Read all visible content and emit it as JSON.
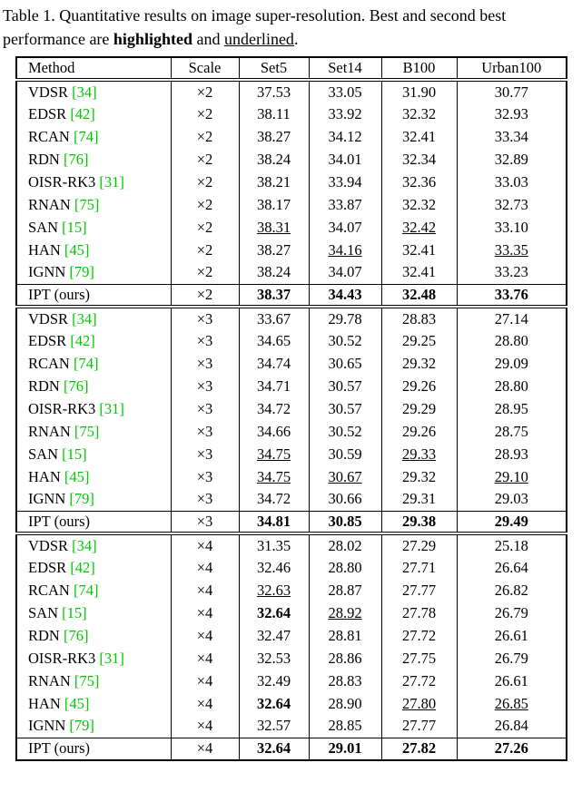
{
  "caption": {
    "prefix": "Table 1. Quantitative results on image super-resolution. Best and second best performance are ",
    "highlighted_word": "highlighted",
    "and_text": " and ",
    "underlined_word": "underlined",
    "period": "."
  },
  "table": {
    "citation_color": "#00C800",
    "columns": [
      "Method",
      "Scale",
      "Set5",
      "Set14",
      "B100",
      "Urban100"
    ],
    "sections": [
      {
        "scale": "×2",
        "rows": [
          {
            "method": "VDSR",
            "cite": "[34]",
            "cells": [
              "37.53",
              "33.05",
              "31.90",
              "30.77"
            ],
            "styles": [
              "p",
              "p",
              "p",
              "p"
            ]
          },
          {
            "method": "EDSR",
            "cite": "[42]",
            "cells": [
              "38.11",
              "33.92",
              "32.32",
              "32.93"
            ],
            "styles": [
              "p",
              "p",
              "p",
              "p"
            ]
          },
          {
            "method": "RCAN",
            "cite": "[74]",
            "cells": [
              "38.27",
              "34.12",
              "32.41",
              "33.34"
            ],
            "styles": [
              "p",
              "p",
              "p",
              "p"
            ]
          },
          {
            "method": "RDN",
            "cite": "[76]",
            "cells": [
              "38.24",
              "34.01",
              "32.34",
              "32.89"
            ],
            "styles": [
              "p",
              "p",
              "p",
              "p"
            ]
          },
          {
            "method": "OISR-RK3",
            "cite": "[31]",
            "cells": [
              "38.21",
              "33.94",
              "32.36",
              "33.03"
            ],
            "styles": [
              "p",
              "p",
              "p",
              "p"
            ]
          },
          {
            "method": "RNAN",
            "cite": "[75]",
            "cells": [
              "38.17",
              "33.87",
              "32.32",
              "32.73"
            ],
            "styles": [
              "p",
              "p",
              "p",
              "p"
            ]
          },
          {
            "method": "SAN",
            "cite": "[15]",
            "cells": [
              "38.31",
              "34.07",
              "32.42",
              "33.10"
            ],
            "styles": [
              "u",
              "p",
              "u",
              "p"
            ]
          },
          {
            "method": "HAN",
            "cite": "[45]",
            "cells": [
              "38.27",
              "34.16",
              "32.41",
              "33.35"
            ],
            "styles": [
              "p",
              "u",
              "p",
              "u"
            ]
          },
          {
            "method": "IGNN",
            "cite": "[79]",
            "cells": [
              "38.24",
              "34.07",
              "32.41",
              "33.23"
            ],
            "styles": [
              "p",
              "p",
              "p",
              "p"
            ]
          },
          {
            "method": "IPT (ours)",
            "cite": "",
            "cells": [
              "38.37",
              "34.43",
              "32.48",
              "33.76"
            ],
            "styles": [
              "b",
              "b",
              "b",
              "b"
            ],
            "ours": true
          }
        ]
      },
      {
        "scale": "×3",
        "rows": [
          {
            "method": "VDSR",
            "cite": "[34]",
            "cells": [
              "33.67",
              "29.78",
              "28.83",
              "27.14"
            ],
            "styles": [
              "p",
              "p",
              "p",
              "p"
            ]
          },
          {
            "method": "EDSR",
            "cite": "[42]",
            "cells": [
              "34.65",
              "30.52",
              "29.25",
              "28.80"
            ],
            "styles": [
              "p",
              "p",
              "p",
              "p"
            ]
          },
          {
            "method": "RCAN",
            "cite": "[74]",
            "cells": [
              "34.74",
              "30.65",
              "29.32",
              "29.09"
            ],
            "styles": [
              "p",
              "p",
              "p",
              "p"
            ]
          },
          {
            "method": "RDN",
            "cite": "[76]",
            "cells": [
              "34.71",
              "30.57",
              "29.26",
              "28.80"
            ],
            "styles": [
              "p",
              "p",
              "p",
              "p"
            ]
          },
          {
            "method": "OISR-RK3",
            "cite": "[31]",
            "cells": [
              "34.72",
              "30.57",
              "29.29",
              "28.95"
            ],
            "styles": [
              "p",
              "p",
              "p",
              "p"
            ]
          },
          {
            "method": "RNAN",
            "cite": "[75]",
            "cells": [
              "34.66",
              "30.52",
              "29.26",
              "28.75"
            ],
            "styles": [
              "p",
              "p",
              "p",
              "p"
            ]
          },
          {
            "method": "SAN",
            "cite": "[15]",
            "cells": [
              "34.75",
              "30.59",
              "29.33",
              "28.93"
            ],
            "styles": [
              "u",
              "p",
              "u",
              "p"
            ]
          },
          {
            "method": "HAN",
            "cite": "[45]",
            "cells": [
              "34.75",
              "30.67",
              "29.32",
              "29.10"
            ],
            "styles": [
              "u",
              "u",
              "p",
              "u"
            ]
          },
          {
            "method": "IGNN",
            "cite": "[79]",
            "cells": [
              "34.72",
              "30.66",
              "29.31",
              "29.03"
            ],
            "styles": [
              "p",
              "p",
              "p",
              "p"
            ]
          },
          {
            "method": "IPT (ours)",
            "cite": "",
            "cells": [
              "34.81",
              "30.85",
              "29.38",
              "29.49"
            ],
            "styles": [
              "b",
              "b",
              "b",
              "b"
            ],
            "ours": true
          }
        ]
      },
      {
        "scale": "×4",
        "rows": [
          {
            "method": "VDSR",
            "cite": "[34]",
            "cells": [
              "31.35",
              "28.02",
              "27.29",
              "25.18"
            ],
            "styles": [
              "p",
              "p",
              "p",
              "p"
            ]
          },
          {
            "method": "EDSR",
            "cite": "[42]",
            "cells": [
              "32.46",
              "28.80",
              "27.71",
              "26.64"
            ],
            "styles": [
              "p",
              "p",
              "p",
              "p"
            ]
          },
          {
            "method": "RCAN",
            "cite": "[74]",
            "cells": [
              "32.63",
              "28.87",
              "27.77",
              "26.82"
            ],
            "styles": [
              "u",
              "p",
              "p",
              "p"
            ]
          },
          {
            "method": "SAN",
            "cite": "[15]",
            "cells": [
              "32.64",
              "28.92",
              "27.78",
              "26.79"
            ],
            "styles": [
              "b",
              "u",
              "p",
              "p"
            ]
          },
          {
            "method": "RDN",
            "cite": "[76]",
            "cells": [
              "32.47",
              "28.81",
              "27.72",
              "26.61"
            ],
            "styles": [
              "p",
              "p",
              "p",
              "p"
            ]
          },
          {
            "method": "OISR-RK3",
            "cite": "[31]",
            "cells": [
              "32.53",
              "28.86",
              "27.75",
              "26.79"
            ],
            "styles": [
              "p",
              "p",
              "p",
              "p"
            ]
          },
          {
            "method": "RNAN",
            "cite": "[75]",
            "cells": [
              "32.49",
              "28.83",
              "27.72",
              "26.61"
            ],
            "styles": [
              "p",
              "p",
              "p",
              "p"
            ]
          },
          {
            "method": "HAN",
            "cite": "[45]",
            "cells": [
              "32.64",
              "28.90",
              "27.80",
              "26.85"
            ],
            "styles": [
              "b",
              "p",
              "u",
              "u"
            ]
          },
          {
            "method": "IGNN",
            "cite": "[79]",
            "cells": [
              "32.57",
              "28.85",
              "27.77",
              "26.84"
            ],
            "styles": [
              "p",
              "p",
              "p",
              "p"
            ]
          },
          {
            "method": "IPT (ours)",
            "cite": "",
            "cells": [
              "32.64",
              "29.01",
              "27.82",
              "27.26"
            ],
            "styles": [
              "b",
              "b",
              "b",
              "b"
            ],
            "ours": true
          }
        ]
      }
    ]
  }
}
